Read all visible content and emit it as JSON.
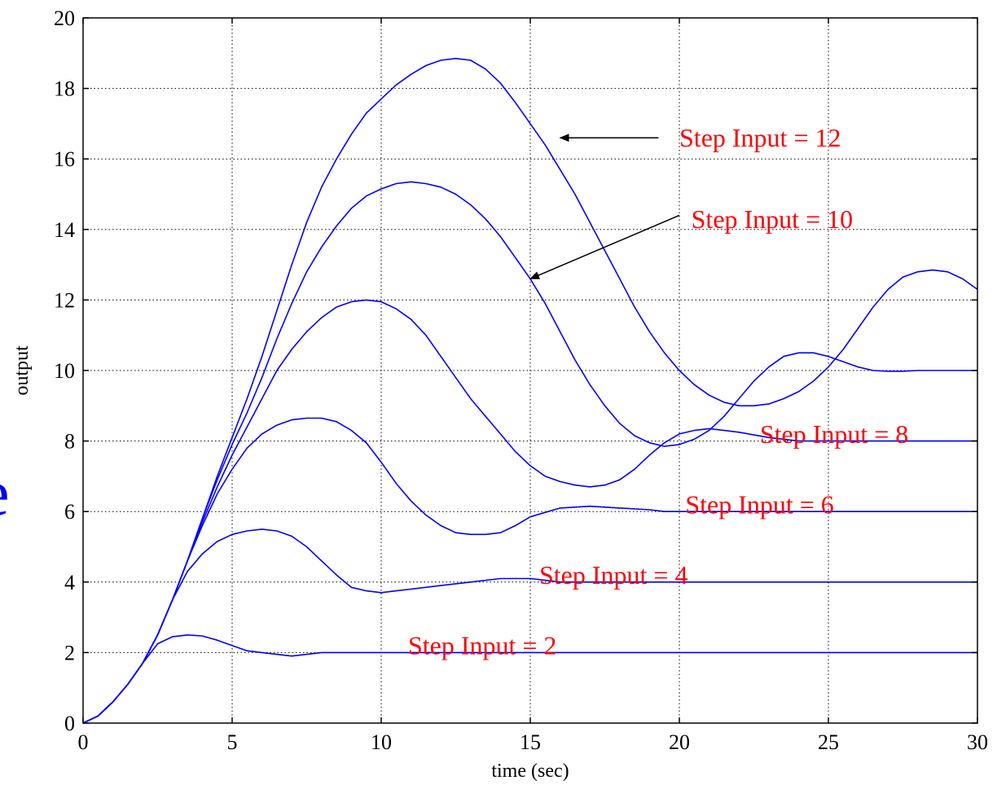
{
  "colors": {
    "series": "#0000ff",
    "annotation": "#ff0000",
    "axis": "#000000",
    "grid": "#000000",
    "edge_glyph": "#0000ff"
  },
  "edge_glyph": "e",
  "chart_data": {
    "type": "line",
    "title": "",
    "xlabel": "time (sec)",
    "ylabel": "output",
    "xlim": [
      0,
      30
    ],
    "ylim": [
      0,
      20
    ],
    "xticks": [
      "0",
      "5",
      "10",
      "15",
      "20",
      "25",
      "30"
    ],
    "yticks": [
      "0",
      "2",
      "4",
      "6",
      "8",
      "10",
      "12",
      "14",
      "16",
      "18",
      "20"
    ],
    "grid": true,
    "legend": "none",
    "series": [
      {
        "x": [
          0,
          0.5,
          1,
          1.5,
          2,
          2.5,
          3,
          3.5,
          4,
          4.5,
          5,
          5.5,
          6,
          6.5,
          7,
          7.5,
          8,
          9,
          10,
          30
        ],
        "y": [
          0,
          0.2,
          0.6,
          1.1,
          1.7,
          2.25,
          2.45,
          2.5,
          2.47,
          2.35,
          2.2,
          2.05,
          2.0,
          1.95,
          1.9,
          1.95,
          2.0,
          2.0,
          2.0,
          2.0
        ]
      },
      {
        "x": [
          0,
          0.5,
          1,
          1.5,
          2,
          2.5,
          3,
          3.5,
          4,
          4.5,
          5,
          5.5,
          6,
          6.5,
          7,
          7.5,
          8,
          8.5,
          9,
          9.5,
          10,
          10.5,
          11,
          12,
          13,
          14,
          15,
          15.5,
          16,
          30
        ],
        "y": [
          0,
          0.2,
          0.6,
          1.1,
          1.7,
          2.5,
          3.5,
          4.3,
          4.8,
          5.15,
          5.35,
          5.45,
          5.5,
          5.45,
          5.3,
          5.0,
          4.6,
          4.2,
          3.85,
          3.75,
          3.7,
          3.75,
          3.8,
          3.9,
          4.0,
          4.1,
          4.1,
          4.05,
          4.0,
          4.0
        ]
      },
      {
        "x": [
          0,
          0.5,
          1,
          1.5,
          2,
          2.5,
          3,
          3.5,
          4,
          4.5,
          5,
          5.5,
          6,
          6.5,
          7,
          7.5,
          8,
          8.5,
          9,
          9.5,
          10,
          10.5,
          11,
          11.5,
          12,
          12.5,
          13,
          13.5,
          14,
          14.5,
          15,
          16,
          17,
          18,
          19,
          19.5,
          30
        ],
        "y": [
          0,
          0.2,
          0.6,
          1.1,
          1.7,
          2.5,
          3.5,
          4.6,
          5.6,
          6.5,
          7.2,
          7.8,
          8.2,
          8.45,
          8.6,
          8.65,
          8.65,
          8.55,
          8.3,
          7.95,
          7.4,
          6.8,
          6.3,
          5.9,
          5.6,
          5.4,
          5.35,
          5.35,
          5.4,
          5.6,
          5.85,
          6.1,
          6.15,
          6.1,
          6.05,
          6.0,
          6.0
        ]
      },
      {
        "x": [
          0,
          0.5,
          1,
          1.5,
          2,
          2.5,
          3,
          3.5,
          4,
          4.5,
          5,
          5.5,
          6,
          6.5,
          7,
          7.5,
          8,
          8.5,
          9,
          9.5,
          10,
          10.5,
          11,
          11.5,
          12,
          12.5,
          13,
          13.5,
          14,
          14.5,
          15,
          15.5,
          16,
          16.5,
          17,
          17.5,
          18,
          18.5,
          19,
          19.5,
          20,
          20.5,
          21,
          22,
          23,
          24,
          30
        ],
        "y": [
          0,
          0.2,
          0.6,
          1.1,
          1.7,
          2.5,
          3.5,
          4.6,
          5.7,
          6.7,
          7.6,
          8.4,
          9.2,
          10.0,
          10.6,
          11.1,
          11.5,
          11.8,
          11.95,
          12.0,
          11.95,
          11.75,
          11.45,
          11.0,
          10.4,
          9.8,
          9.2,
          8.7,
          8.2,
          7.7,
          7.3,
          7.0,
          6.85,
          6.75,
          6.7,
          6.75,
          6.9,
          7.2,
          7.6,
          7.95,
          8.2,
          8.3,
          8.35,
          8.25,
          8.1,
          8.0,
          8.0
        ]
      },
      {
        "x": [
          0,
          0.5,
          1,
          1.5,
          2,
          2.5,
          3,
          3.5,
          4,
          4.5,
          5,
          5.5,
          6,
          6.5,
          7,
          7.5,
          8,
          8.5,
          9,
          9.5,
          10,
          10.5,
          11,
          11.5,
          12,
          12.5,
          13,
          13.5,
          14,
          14.5,
          15,
          15.5,
          16,
          16.5,
          17,
          17.5,
          18,
          18.5,
          19,
          19.5,
          20,
          20.5,
          21,
          21.5,
          22,
          22.5,
          23,
          23.5,
          24,
          24.5,
          25,
          25.5,
          26,
          26.5,
          27,
          27.5,
          28,
          30
        ],
        "y": [
          0,
          0.2,
          0.6,
          1.1,
          1.7,
          2.5,
          3.5,
          4.6,
          5.8,
          6.9,
          7.9,
          8.8,
          9.8,
          10.9,
          11.9,
          12.8,
          13.5,
          14.1,
          14.6,
          14.95,
          15.15,
          15.3,
          15.35,
          15.3,
          15.2,
          15.0,
          14.7,
          14.3,
          13.8,
          13.2,
          12.6,
          11.9,
          11.1,
          10.3,
          9.6,
          9.0,
          8.5,
          8.15,
          7.95,
          7.85,
          7.9,
          8.05,
          8.3,
          8.7,
          9.2,
          9.7,
          10.1,
          10.4,
          10.5,
          10.5,
          10.4,
          10.25,
          10.1,
          10.0,
          9.98,
          9.98,
          10.0,
          10.0
        ]
      },
      {
        "x": [
          0,
          0.5,
          1,
          1.5,
          2,
          2.5,
          3,
          3.5,
          4,
          4.5,
          5,
          5.5,
          6,
          6.5,
          7,
          7.5,
          8,
          8.5,
          9,
          9.5,
          10,
          10.5,
          11,
          11.5,
          12,
          12.5,
          13,
          13.5,
          14,
          14.5,
          15,
          15.5,
          16,
          16.5,
          17,
          17.5,
          18,
          18.5,
          19,
          19.5,
          20,
          20.5,
          21,
          21.5,
          22,
          22.5,
          23,
          23.5,
          24,
          24.5,
          25,
          25.5,
          26,
          26.5,
          27,
          27.5,
          28,
          28.5,
          29,
          29.5,
          30
        ],
        "y": [
          0,
          0.2,
          0.6,
          1.1,
          1.7,
          2.5,
          3.5,
          4.6,
          5.8,
          7.0,
          8.1,
          9.2,
          10.4,
          11.7,
          13.0,
          14.2,
          15.2,
          16.0,
          16.7,
          17.3,
          17.7,
          18.1,
          18.4,
          18.65,
          18.8,
          18.85,
          18.8,
          18.55,
          18.15,
          17.6,
          17.0,
          16.4,
          15.7,
          15.0,
          14.2,
          13.4,
          12.6,
          11.8,
          11.1,
          10.5,
          10.0,
          9.6,
          9.3,
          9.1,
          9.0,
          9.0,
          9.05,
          9.2,
          9.4,
          9.7,
          10.1,
          10.6,
          11.2,
          11.8,
          12.3,
          12.65,
          12.8,
          12.85,
          12.8,
          12.6,
          12.3
        ]
      }
    ],
    "annotations": [
      {
        "text": "Step Input = 12",
        "x": 20,
        "y": 16.6,
        "arrow": {
          "from": [
            19.3,
            16.6
          ],
          "to": [
            16.0,
            16.6
          ]
        }
      },
      {
        "text": "Step Input = 10",
        "x": 20.4,
        "y": 14.3,
        "arrow": {
          "from": [
            20.0,
            14.4
          ],
          "to": [
            15.0,
            12.6
          ]
        }
      },
      {
        "text": "Step Input = 8",
        "x": 22.7,
        "y": 8.2
      },
      {
        "text": "Step Input = 6",
        "x": 20.2,
        "y": 6.2
      },
      {
        "text": "Step Input = 4",
        "x": 15.3,
        "y": 4.2
      },
      {
        "text": "Step Input = 2",
        "x": 10.9,
        "y": 2.2
      }
    ]
  }
}
